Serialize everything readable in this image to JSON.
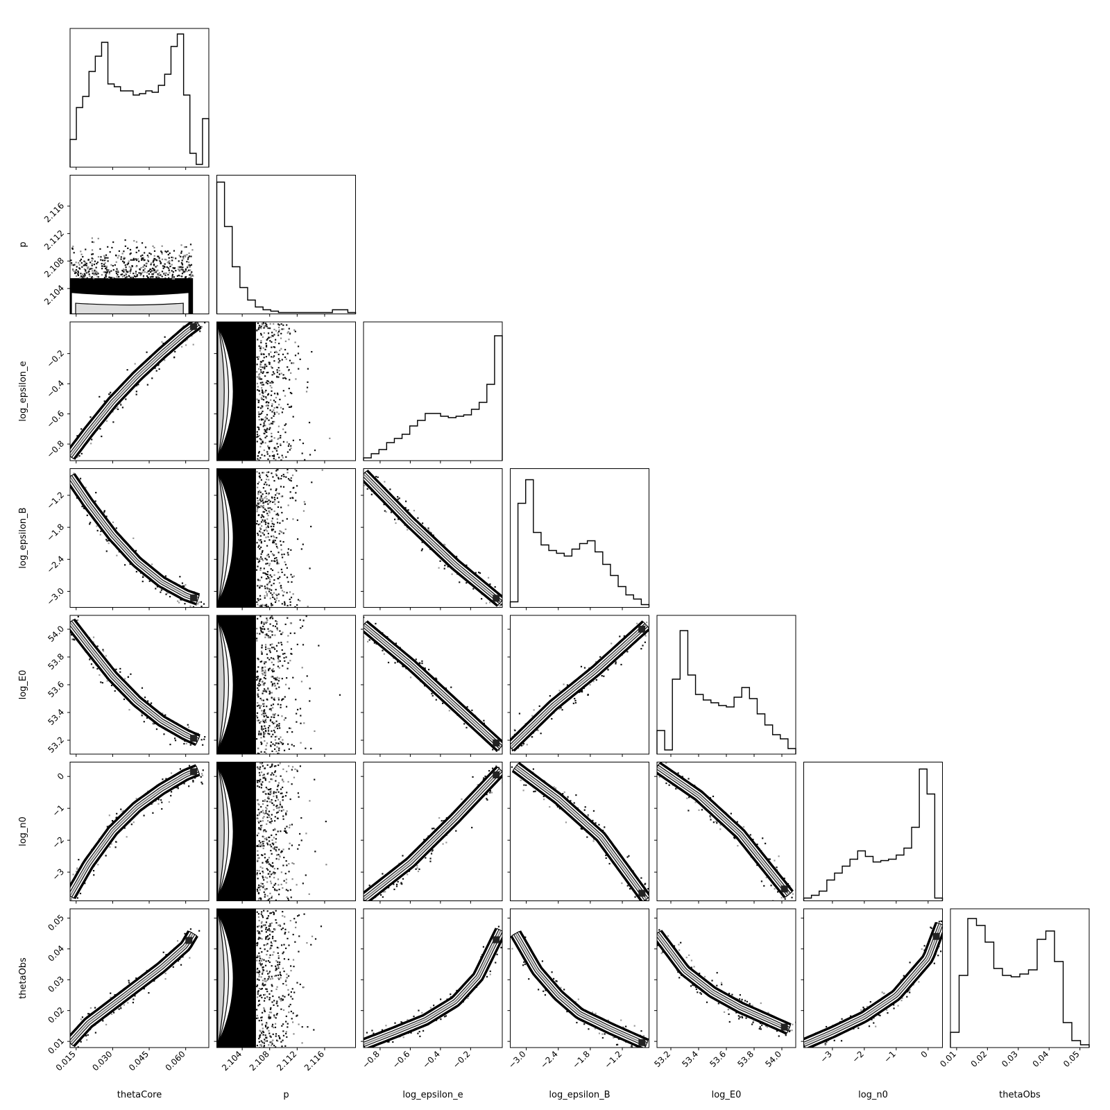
{
  "chart_data": {
    "type": "corner",
    "parameters": [
      {
        "key": "thetaCore",
        "label": "thetaCore",
        "range": [
          0.0125,
          0.0695
        ],
        "ticks": [
          0.015,
          0.03,
          0.045,
          0.06
        ],
        "tick_labels": [
          "0.015",
          "0.030",
          "0.045",
          "0.060"
        ]
      },
      {
        "key": "p",
        "label": "p",
        "range": [
          2.1003,
          2.1205
        ],
        "ticks": [
          2.104,
          2.108,
          2.112,
          2.116
        ],
        "tick_labels": [
          "2.104",
          "2.108",
          "2.112",
          "2.116"
        ]
      },
      {
        "key": "log_epsilon_e",
        "label": "log_epsilon_e",
        "range": [
          -0.91,
          0.01
        ],
        "ticks": [
          -0.8,
          -0.6,
          -0.4,
          -0.2
        ],
        "tick_labels": [
          "−0.8",
          "−0.6",
          "−0.4",
          "−0.2"
        ]
      },
      {
        "key": "log_epsilon_B",
        "label": "log_epsilon_B",
        "range": [
          -3.3,
          -0.7
        ],
        "ticks": [
          -3.0,
          -2.4,
          -1.8,
          -1.2
        ],
        "tick_labels": [
          "−3.0",
          "−2.4",
          "−1.8",
          "−1.2"
        ]
      },
      {
        "key": "log_E0",
        "label": "log_E0",
        "range": [
          53.1,
          54.1
        ],
        "ticks": [
          53.2,
          53.4,
          53.6,
          53.8,
          54.0
        ],
        "tick_labels": [
          "53.2",
          "53.4",
          "53.6",
          "53.8",
          "54.0"
        ]
      },
      {
        "key": "log_n0",
        "label": "log_n0",
        "range": [
          -3.9,
          0.45
        ],
        "ticks": [
          -3,
          -2,
          -1,
          0
        ],
        "tick_labels": [
          "−3",
          "−2",
          "−1",
          "0"
        ]
      },
      {
        "key": "thetaObs",
        "label": "thetaObs",
        "range": [
          0.008,
          0.053
        ],
        "ticks": [
          0.01,
          0.02,
          0.03,
          0.04,
          0.05
        ],
        "tick_labels": [
          "0.01",
          "0.02",
          "0.03",
          "0.04",
          "0.05"
        ]
      }
    ],
    "histograms": [
      [
        0.2,
        0.43,
        0.51,
        0.69,
        0.8,
        0.9,
        0.6,
        0.58,
        0.55,
        0.55,
        0.52,
        0.53,
        0.55,
        0.54,
        0.59,
        0.67,
        0.87,
        0.96,
        0.52,
        0.1,
        0.02,
        0.35
      ],
      [
        0.95,
        0.63,
        0.34,
        0.19,
        0.1,
        0.05,
        0.03,
        0.02,
        0.01,
        0.01,
        0.01,
        0.01,
        0.01,
        0.01,
        0.01,
        0.03,
        0.03,
        0.01
      ],
      [
        0.02,
        0.05,
        0.08,
        0.13,
        0.16,
        0.19,
        0.25,
        0.29,
        0.34,
        0.34,
        0.32,
        0.31,
        0.32,
        0.33,
        0.37,
        0.42,
        0.55,
        0.9
      ],
      [
        0.04,
        0.75,
        0.92,
        0.54,
        0.45,
        0.41,
        0.39,
        0.37,
        0.42,
        0.46,
        0.48,
        0.4,
        0.31,
        0.23,
        0.15,
        0.09,
        0.06,
        0.02
      ],
      [
        0.17,
        0.03,
        0.54,
        0.89,
        0.57,
        0.43,
        0.39,
        0.37,
        0.35,
        0.34,
        0.41,
        0.48,
        0.4,
        0.29,
        0.21,
        0.14,
        0.11,
        0.04
      ],
      [
        0.02,
        0.04,
        0.07,
        0.15,
        0.2,
        0.25,
        0.3,
        0.36,
        0.32,
        0.28,
        0.29,
        0.3,
        0.33,
        0.38,
        0.53,
        0.95,
        0.77,
        0.02
      ],
      [
        0.11,
        0.52,
        0.93,
        0.88,
        0.76,
        0.57,
        0.52,
        0.51,
        0.53,
        0.56,
        0.78,
        0.84,
        0.62,
        0.18,
        0.05,
        0.02
      ]
    ],
    "trend_curves": {
      "1,0": {
        "orientation": "band",
        "x": [
          0.0125,
          0.063
        ],
        "y": [
          2.1003,
          2.1055
        ]
      },
      "2,0": {
        "x": [
          0.0125,
          0.02,
          0.03,
          0.04,
          0.05,
          0.06,
          0.065
        ],
        "y": [
          -0.88,
          -0.72,
          -0.52,
          -0.35,
          -0.2,
          -0.06,
          0.0
        ]
      },
      "3,0": {
        "x": [
          0.0125,
          0.02,
          0.03,
          0.04,
          0.05,
          0.06,
          0.065
        ],
        "y": [
          -0.85,
          -1.35,
          -1.95,
          -2.45,
          -2.82,
          -3.07,
          -3.15
        ]
      },
      "4,0": {
        "x": [
          0.0125,
          0.02,
          0.03,
          0.04,
          0.05,
          0.06,
          0.065
        ],
        "y": [
          54.05,
          53.88,
          53.66,
          53.48,
          53.34,
          53.24,
          53.2
        ]
      },
      "5,0": {
        "x": [
          0.0125,
          0.02,
          0.03,
          0.04,
          0.05,
          0.06,
          0.065
        ],
        "y": [
          -3.75,
          -2.75,
          -1.7,
          -0.95,
          -0.4,
          0.05,
          0.2
        ]
      },
      "6,0": {
        "x": [
          0.0125,
          0.02,
          0.03,
          0.04,
          0.05,
          0.06,
          0.063
        ],
        "y": [
          0.0095,
          0.016,
          0.022,
          0.028,
          0.034,
          0.041,
          0.045
        ]
      },
      "3,2": {
        "x": [
          -0.91,
          -0.6,
          -0.3,
          0.0
        ],
        "y": [
          -0.8,
          -1.7,
          -2.5,
          -3.2
        ]
      },
      "4,2": {
        "x": [
          -0.91,
          -0.6,
          -0.3,
          0.0
        ],
        "y": [
          54.03,
          53.75,
          53.45,
          53.15
        ]
      },
      "5,2": {
        "x": [
          -0.91,
          -0.6,
          -0.3,
          0.0
        ],
        "y": [
          -3.85,
          -2.7,
          -1.3,
          0.2
        ]
      },
      "6,2": {
        "x": [
          -0.91,
          -0.7,
          -0.5,
          -0.3,
          -0.15,
          0.0
        ],
        "y": [
          0.009,
          0.013,
          0.017,
          0.023,
          0.031,
          0.046
        ]
      },
      "4,3": {
        "x": [
          -3.3,
          -2.5,
          -1.7,
          -0.75
        ],
        "y": [
          53.15,
          53.45,
          53.7,
          54.03
        ]
      },
      "5,3": {
        "x": [
          -3.2,
          -2.4,
          -1.6,
          -0.75
        ],
        "y": [
          0.3,
          -0.7,
          -1.9,
          -3.85
        ]
      },
      "6,3": {
        "x": [
          -3.2,
          -2.8,
          -2.4,
          -2.0,
          -1.4,
          -0.75
        ],
        "y": [
          0.045,
          0.033,
          0.025,
          0.019,
          0.014,
          0.009
        ]
      },
      "5,4": {
        "x": [
          53.1,
          53.4,
          53.7,
          54.05
        ],
        "y": [
          0.3,
          -0.6,
          -1.8,
          -3.7
        ]
      },
      "6,4": {
        "x": [
          53.1,
          53.3,
          53.5,
          53.7,
          53.9,
          54.05
        ],
        "y": [
          0.045,
          0.033,
          0.026,
          0.021,
          0.017,
          0.014
        ]
      },
      "6,5": {
        "x": [
          -3.9,
          -3.0,
          -2.0,
          -1.0,
          0.0,
          0.4
        ],
        "y": [
          0.009,
          0.013,
          0.018,
          0.025,
          0.037,
          0.048
        ]
      }
    },
    "p_vertical_band": {
      "x": [
        2.1003,
        2.106
      ]
    },
    "xlim_note": "",
    "title": "",
    "grid": false
  }
}
